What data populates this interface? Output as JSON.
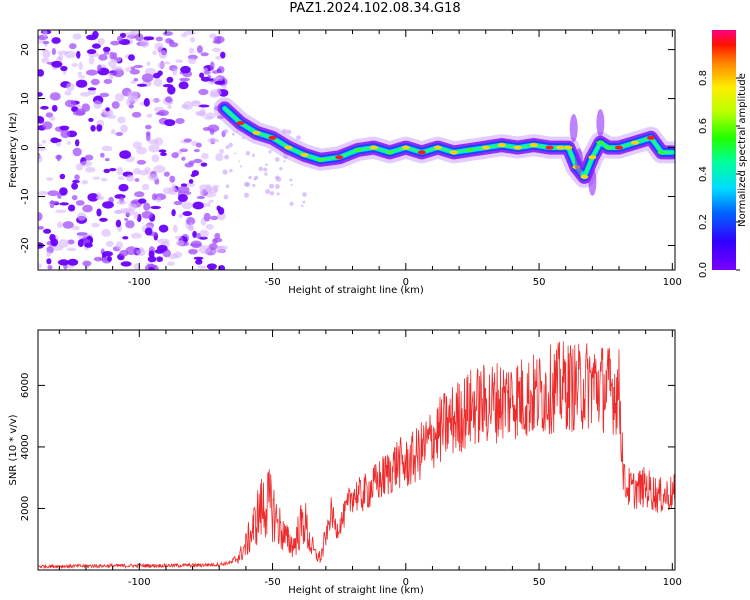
{
  "title": "PAZ1.2024.102.08.34.G18",
  "colors": {
    "snr_line": "#ee2a2a",
    "scatter": "#9a33ff",
    "frame": "#000000"
  },
  "chart_data": [
    {
      "type": "heatmap",
      "title": "PAZ1.2024.102.08.34.G18",
      "xlabel": "Height of straight line (km)",
      "ylabel": "Frequency (Hz)",
      "xlim": [
        -138,
        101
      ],
      "ylim": [
        -25,
        24
      ],
      "x_ticks": [
        -100,
        -50,
        0,
        50,
        100
      ],
      "y_ticks": [
        -20,
        -10,
        0,
        10,
        20
      ],
      "colorbar": {
        "label": "Normalized spectral amplitude",
        "range": [
          0,
          1
        ],
        "ticks": [
          0.0,
          0.2,
          0.4,
          0.6,
          0.8
        ],
        "colormap": "rainbow (purple at 0 to red/magenta at 1)"
      },
      "ridge": {
        "x": [
          -68,
          -62,
          -56,
          -50,
          -44,
          -38,
          -32,
          -25,
          -18,
          -12,
          -6,
          0,
          6,
          12,
          18,
          24,
          30,
          36,
          42,
          48,
          54,
          58,
          61,
          64,
          67,
          70,
          73,
          76,
          80,
          86,
          92,
          96,
          100
        ],
        "y": [
          8,
          5,
          3,
          2,
          0,
          -1.5,
          -2.5,
          -2,
          -0.5,
          0,
          -1,
          0,
          -1,
          0,
          -1,
          -0.5,
          0,
          0.5,
          0,
          0.5,
          0,
          0,
          0,
          -4,
          -6,
          -2,
          1,
          0,
          0,
          1,
          2,
          -1,
          -1
        ]
      },
      "noise_region_x": [
        -138,
        -68
      ]
    },
    {
      "type": "line",
      "xlabel": "Height of straight line (km)",
      "ylabel": "SNR (10 * v/v)",
      "xlim": [
        -138,
        101
      ],
      "ylim": [
        0,
        7800
      ],
      "x_ticks": [
        -100,
        -50,
        0,
        50,
        100
      ],
      "y_ticks": [
        2000,
        4000,
        6000
      ],
      "series": [
        {
          "x": [
            -138,
            -120,
            -100,
            -80,
            -70,
            -65,
            -62,
            -60,
            -57,
            -55,
            -52,
            -50,
            -48,
            -45,
            -42,
            -40,
            -38,
            -36,
            -34,
            -32,
            -30,
            -28,
            -26,
            -24,
            -22,
            -20,
            -17,
            -14,
            -10,
            -6,
            -3,
            0,
            5,
            10,
            15,
            20,
            25,
            30,
            35,
            40,
            45,
            50,
            55,
            60,
            65,
            70,
            75,
            80,
            82,
            85,
            90,
            95,
            101
          ],
          "y": [
            120,
            130,
            140,
            150,
            180,
            250,
            500,
            800,
            1400,
            1900,
            2200,
            2000,
            1500,
            1000,
            800,
            1300,
            1600,
            900,
            500,
            400,
            1000,
            1900,
            1300,
            1600,
            2000,
            2500,
            2400,
            2600,
            2900,
            3200,
            3500,
            3400,
            3800,
            4300,
            4700,
            5000,
            5300,
            5400,
            5500,
            5600,
            5600,
            5700,
            5900,
            6000,
            5900,
            6100,
            5900,
            5800,
            2800,
            2600,
            2700,
            2400,
            2500
          ]
        }
      ]
    }
  ]
}
